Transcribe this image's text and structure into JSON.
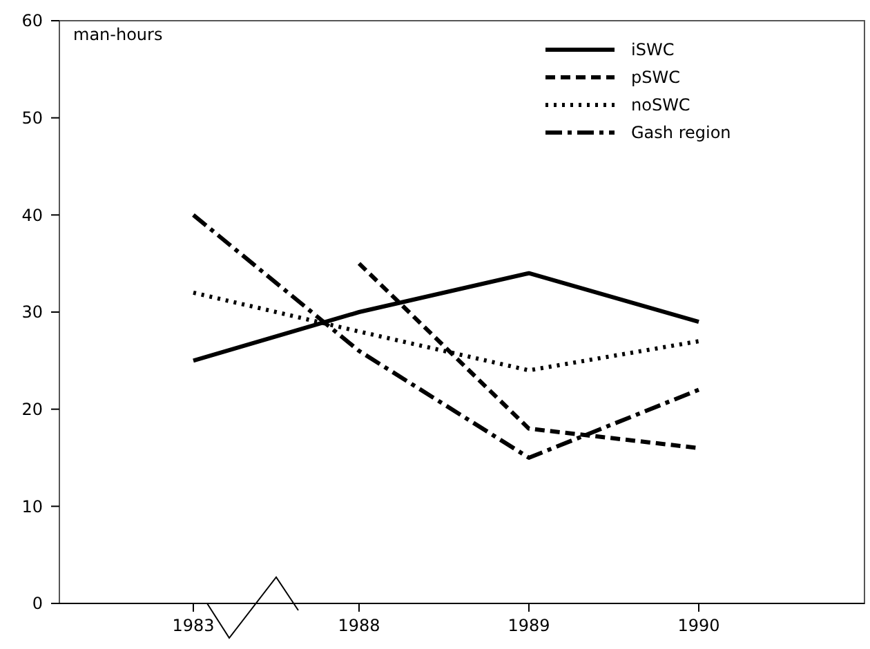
{
  "chart_data": {
    "type": "line",
    "ylabel": "man-hours",
    "categories": [
      "1983",
      "1988",
      "1989",
      "1990"
    ],
    "series": [
      {
        "name": "iSWC",
        "color": "#000000",
        "line_style": "solid",
        "values": [
          25,
          30,
          34,
          29
        ]
      },
      {
        "name": "pSWC",
        "color": "#000000",
        "line_style": "dashed",
        "values": [
          null,
          35,
          18,
          16
        ]
      },
      {
        "name": "noSWC",
        "color": "#000000",
        "line_style": "dotted",
        "values": [
          32,
          28,
          24,
          27
        ]
      },
      {
        "name": "Gash region",
        "color": "#000000",
        "line_style": "dashdot",
        "values": [
          40,
          26,
          15,
          22
        ]
      }
    ],
    "ylim": [
      0,
      60
    ],
    "yticks": [
      0,
      10,
      20,
      30,
      40,
      50,
      60
    ],
    "legend": "top right",
    "grid": false,
    "marker": "none"
  }
}
